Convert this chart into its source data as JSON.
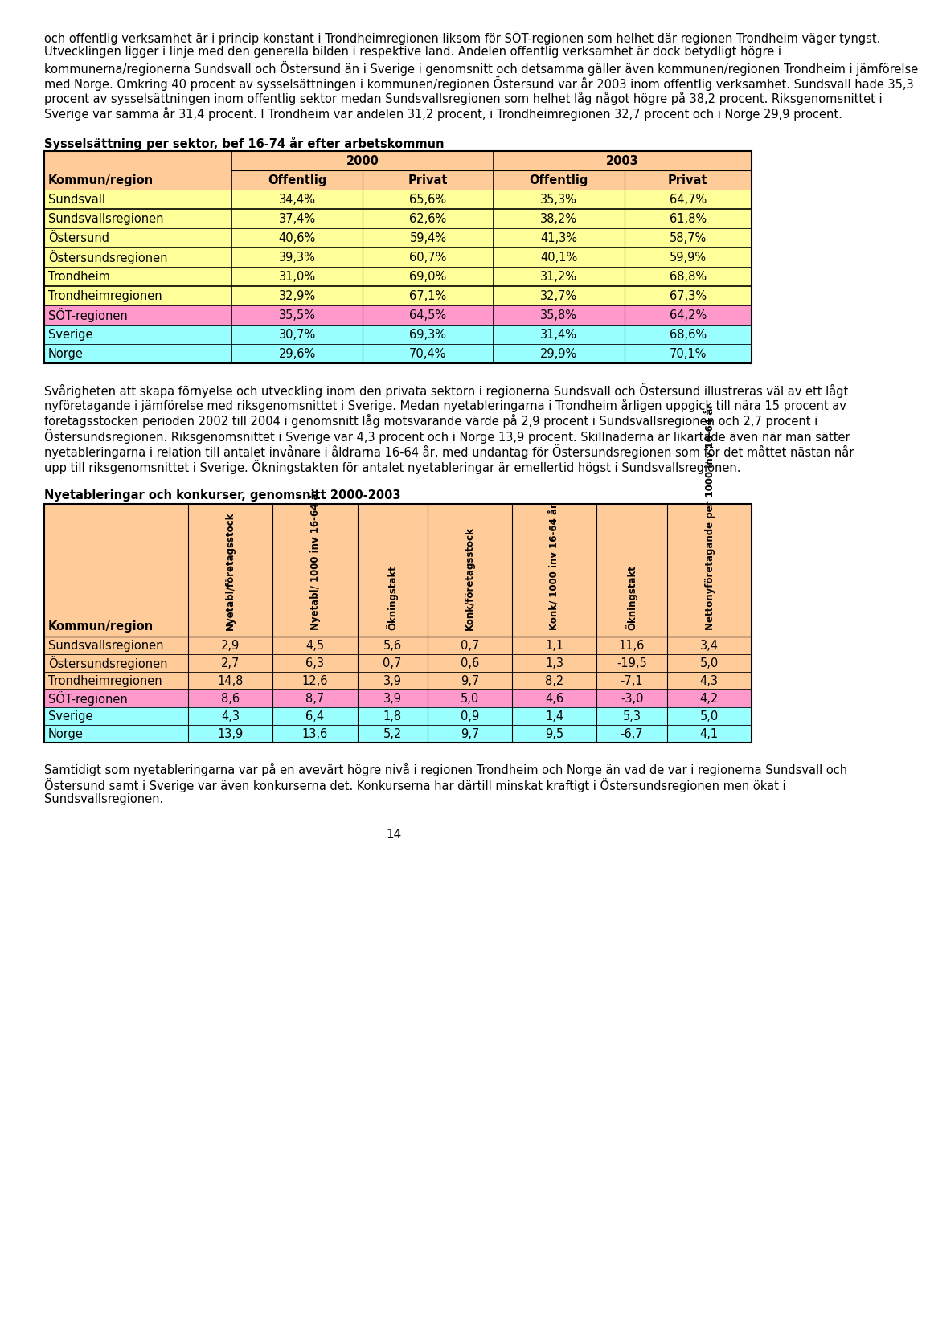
{
  "page_bg": "#ffffff",
  "body_text_1": "och offentlig verksamhet är i princip konstant i Trondheimregionen liksom för SÖT-regionen som helhet där regionen Trondheim väger tyngst. Utvecklingen ligger i linje med den generella bilden i respektive land. Andelen offentlig verksamhet är dock betydligt högre i kommunerna/regionerna Sundsvall och Östersund än i Sverige i genomsnitt och detsamma gäller även kommunen/regionen Trondheim i jämförelse med Norge. Omkring 40 procent av sysselsättningen i kommunen/regionen Östersund var år 2003 inom offentlig verksamhet. Sundsvall hade 35,3 procent av sysselsättningen inom offentlig sektor medan Sundsvallsregionen som helhet låg något högre på 38,2 procent. Riksgenomsnittet i Sverige var samma år 31,4 procent. I Trondheim var andelen 31,2 procent, i Trondheimregionen 32,7 procent och i Norge 29,9 procent.",
  "table1_title": "Sysselsättning per sektor, bef 16-74 år efter arbetskommun",
  "table1_rows": [
    {
      "label": "Sundsvall",
      "vals": [
        "34,4%",
        "65,6%",
        "35,3%",
        "64,7%"
      ],
      "color": "#ffff99"
    },
    {
      "label": "Sundsvallsregionen",
      "vals": [
        "37,4%",
        "62,6%",
        "38,2%",
        "61,8%"
      ],
      "color": "#ffff99"
    },
    {
      "label": "Östersund",
      "vals": [
        "40,6%",
        "59,4%",
        "41,3%",
        "58,7%"
      ],
      "color": "#ffff99"
    },
    {
      "label": "Östersundsregionen",
      "vals": [
        "39,3%",
        "60,7%",
        "40,1%",
        "59,9%"
      ],
      "color": "#ffff99"
    },
    {
      "label": "Trondheim",
      "vals": [
        "31,0%",
        "69,0%",
        "31,2%",
        "68,8%"
      ],
      "color": "#ffff99"
    },
    {
      "label": "Trondheimregionen",
      "vals": [
        "32,9%",
        "67,1%",
        "32,7%",
        "67,3%"
      ],
      "color": "#ffff99"
    },
    {
      "label": "SÖT-regionen",
      "vals": [
        "35,5%",
        "64,5%",
        "35,8%",
        "64,2%"
      ],
      "color": "#ff99cc"
    },
    {
      "label": "Sverige",
      "vals": [
        "30,7%",
        "69,3%",
        "31,4%",
        "68,6%"
      ],
      "color": "#99ffff"
    },
    {
      "label": "Norge",
      "vals": [
        "29,6%",
        "70,4%",
        "29,9%",
        "70,1%"
      ],
      "color": "#99ffff"
    }
  ],
  "table1_header_bg": "#ffcc99",
  "table1_group_borders": [
    1,
    3,
    5,
    6
  ],
  "body_text_2": "Svårigheten att skapa förnyelse och utveckling inom den privata sektorn i regionerna Sundsvall och Östersund illustreras väl av ett lågt nyföretagande i jämförelse med riksgenomsnittet i Sverige. Medan nyetableringarna i Trondheim årligen uppgick till nära 15 procent av företagsstocken perioden 2002 till 2004 i genomsnitt låg motsvarande värde på 2,9 procent i Sundsvallsregionen och 2,7 procent i Östersundsregionen. Riksgenomsnittet i Sverige var 4,3 procent och i Norge 13,9 procent. Skillnaderna är likartade även när man sätter nyetableringarna i relation till antalet invånare i åldrarna 16-64 år, med undantag för Östersundsregionen som för det måttet nästan når upp till riksgenomsnittet i Sverige. Ökningstakten för antalet nyetableringar är emellertid högst i Sundsvallsregionen.",
  "table2_title": "Nyetableringar och konkurser, genomsnitt 2000-2003",
  "table2_col_headers": [
    "Nyetabl/företagsstock",
    "Nyetabl/ 1000 inv 16-64 år",
    "Ökningstakt",
    "Konk/företagsstock",
    "Konk/ 1000 inv 16-64 år",
    "Ökningstakt",
    "Nettonyföretagande per 1000 inv 16-64 år"
  ],
  "table2_row_label_header": "Kommun/region",
  "table2_rows": [
    {
      "label": "Sundsvallsregionen",
      "vals": [
        "2,9",
        "4,5",
        "5,6",
        "0,7",
        "1,1",
        "11,6",
        "3,4"
      ],
      "color": "#ffcc99"
    },
    {
      "label": "Östersundsregionen",
      "vals": [
        "2,7",
        "6,3",
        "0,7",
        "0,6",
        "1,3",
        "-19,5",
        "5,0"
      ],
      "color": "#ffcc99"
    },
    {
      "label": "Trondheimregionen",
      "vals": [
        "14,8",
        "12,6",
        "3,9",
        "9,7",
        "8,2",
        "-7,1",
        "4,3"
      ],
      "color": "#ffcc99"
    },
    {
      "label": "SÖT-regionen",
      "vals": [
        "8,6",
        "8,7",
        "3,9",
        "5,0",
        "4,6",
        "-3,0",
        "4,2"
      ],
      "color": "#ff99cc"
    },
    {
      "label": "Sverige",
      "vals": [
        "4,3",
        "6,4",
        "1,8",
        "0,9",
        "1,4",
        "5,3",
        "5,0"
      ],
      "color": "#99ffff"
    },
    {
      "label": "Norge",
      "vals": [
        "13,9",
        "13,6",
        "5,2",
        "9,7",
        "9,5",
        "-6,7",
        "4,1"
      ],
      "color": "#99ffff"
    }
  ],
  "table2_header_bg": "#ffcc99",
  "body_text_3": "Samtidigt som nyetableringarna var på en avevärt högre nivå i regionen Trondheim och Norge än vad de var i regionerna Sundsvall och Östersund samt i Sverige var även konkurserna det. Konkurserna har därtill minskat kraftigt i Östersundsregionen men ökat i Sundsvallsregionen.",
  "page_number": "14"
}
